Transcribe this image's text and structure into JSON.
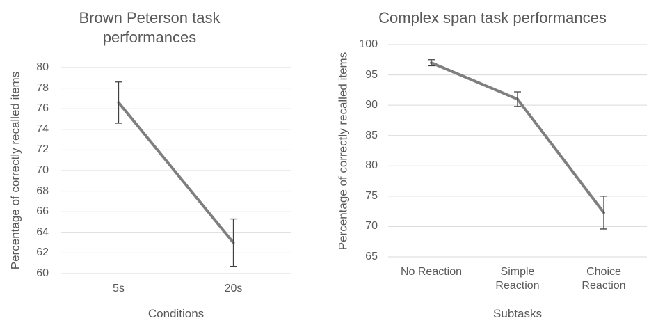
{
  "chart_data": [
    {
      "type": "line",
      "title": "Brown Peterson task performances",
      "x_label": "Conditions",
      "y_label": "Percentage of correctly recalled items",
      "categories": [
        "5s",
        "20s"
      ],
      "values": [
        76.6,
        63.0
      ],
      "errors": [
        2.0,
        2.3
      ],
      "color": "#7f7f7f",
      "ylim": [
        60,
        80
      ],
      "yticks": [
        60,
        62,
        64,
        66,
        68,
        70,
        72,
        74,
        76,
        78,
        80
      ],
      "grid": true
    },
    {
      "type": "line",
      "title": "Complex span task performances",
      "x_label": "Subtasks",
      "y_label": "Percentage of correctly recalled items",
      "categories": [
        "No Reaction",
        "Simple Reaction",
        "Choice Reaction"
      ],
      "values": [
        97.0,
        91.0,
        72.3
      ],
      "errors": [
        0.5,
        1.2,
        2.7
      ],
      "color": "#7f7f7f",
      "ylim": [
        65,
        100
      ],
      "yticks": [
        65,
        70,
        75,
        80,
        85,
        90,
        95,
        100
      ],
      "grid": true
    }
  ]
}
